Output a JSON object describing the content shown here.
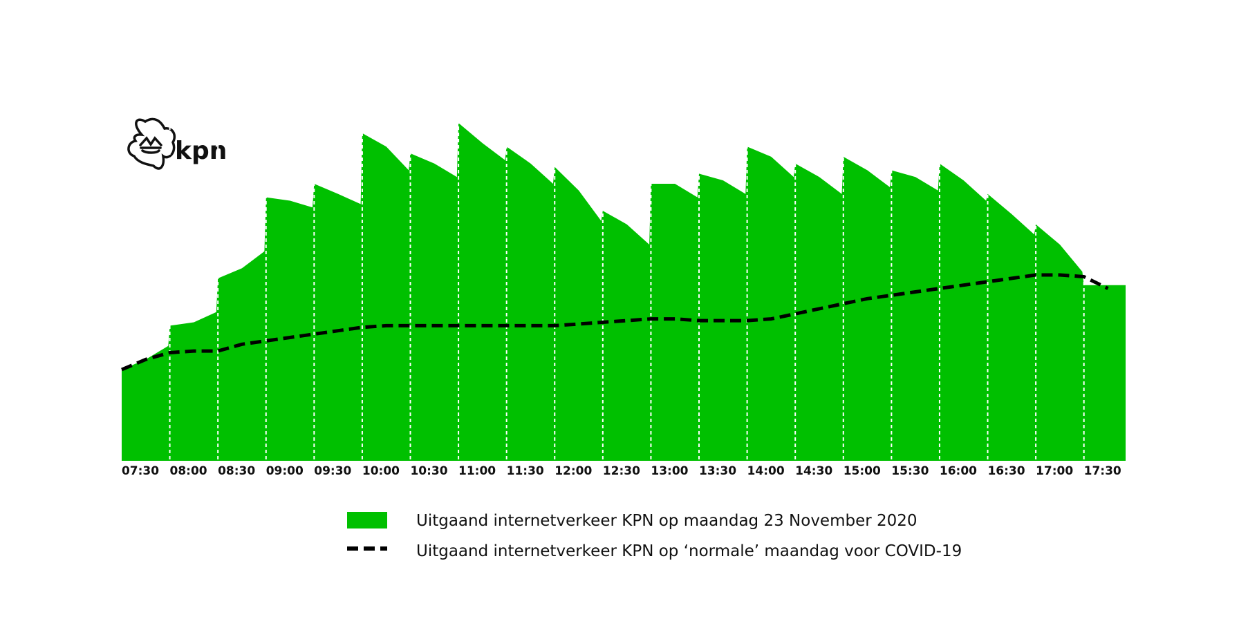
{
  "logo": {
    "text": "kpn",
    "icon": "kpn-crown-logo-icon"
  },
  "colors": {
    "area": "#00c000",
    "line": "#000000",
    "grid": "#ffffff",
    "background": "#ffffff"
  },
  "chart_data": {
    "type": "area",
    "title": "",
    "xlabel": "",
    "ylabel": "",
    "x_ticks": [
      "07:30",
      "08:00",
      "08:30",
      "09:00",
      "09:30",
      "10:00",
      "10:30",
      "11:00",
      "11:30",
      "12:00",
      "12:30",
      "13:00",
      "13:30",
      "14:00",
      "14:30",
      "15:00",
      "15:30",
      "16:00",
      "16:30",
      "17:00",
      "17:30"
    ],
    "y_axis": "hidden",
    "grid": "vertical dashed lines at half-hour intervals",
    "legend_position": "bottom",
    "series": [
      {
        "name": "Uitgaand internetverkeer KPN op maandag 23 November 2020",
        "style": "area",
        "x": [
          "07:30",
          "07:45",
          "07:59",
          "08:00",
          "08:15",
          "08:29",
          "08:30",
          "08:45",
          "08:59",
          "09:00",
          "09:15",
          "09:29",
          "09:30",
          "09:45",
          "09:59",
          "10:00",
          "10:15",
          "10:29",
          "10:30",
          "10:45",
          "10:59",
          "11:00",
          "11:15",
          "11:29",
          "11:30",
          "11:45",
          "11:59",
          "12:00",
          "12:15",
          "12:29",
          "12:30",
          "12:45",
          "12:59",
          "13:00",
          "13:15",
          "13:29",
          "13:30",
          "13:45",
          "13:59",
          "14:00",
          "14:15",
          "14:29",
          "14:30",
          "14:45",
          "14:59",
          "15:00",
          "15:15",
          "15:29",
          "15:30",
          "15:45",
          "15:59",
          "16:00",
          "16:15",
          "16:29",
          "16:30",
          "16:45",
          "16:59",
          "17:00",
          "17:15",
          "17:29",
          "17:30",
          "17:45"
        ],
        "values": [
          27,
          30,
          34,
          40,
          41,
          44,
          54,
          57,
          62,
          78,
          77,
          75,
          82,
          79,
          76,
          97,
          93,
          86,
          91,
          88,
          84,
          100,
          94,
          89,
          93,
          88,
          82,
          87,
          80,
          71,
          74,
          70,
          64,
          82,
          82,
          78,
          85,
          83,
          79,
          93,
          90,
          84,
          88,
          84,
          79,
          90,
          86,
          81,
          86,
          84,
          80,
          88,
          83,
          77,
          79,
          73,
          67,
          70,
          64,
          56,
          52,
          52
        ]
      },
      {
        "name": "Uitgaand internetverkeer KPN op ‘normale’ maandag voor COVID-19",
        "style": "dashed-line",
        "x": [
          "07:30",
          "07:45",
          "08:00",
          "08:15",
          "08:30",
          "08:45",
          "09:00",
          "09:15",
          "09:30",
          "09:45",
          "10:00",
          "10:15",
          "10:30",
          "10:45",
          "11:00",
          "11:15",
          "11:30",
          "11:45",
          "12:00",
          "12:15",
          "12:30",
          "12:45",
          "13:00",
          "13:15",
          "13:30",
          "13:45",
          "14:00",
          "14:15",
          "14:30",
          "14:45",
          "15:00",
          "15:15",
          "15:30",
          "15:45",
          "16:00",
          "16:15",
          "16:30",
          "16:45",
          "17:00",
          "17:15",
          "17:30",
          "17:45"
        ],
        "values": [
          27,
          30,
          32,
          32.5,
          32.5,
          34.5,
          35.5,
          36.5,
          37.5,
          38.5,
          39.5,
          40,
          40,
          40,
          40,
          40,
          40,
          40,
          40,
          40.5,
          41,
          41.5,
          42,
          42,
          41.5,
          41.5,
          41.5,
          42,
          43.5,
          45,
          46.5,
          48,
          49,
          50,
          51,
          52,
          53,
          54,
          55,
          55,
          54.5,
          51
        ]
      }
    ]
  },
  "legend": [
    {
      "label": "Uitgaand internetverkeer KPN op maandag 23 November 2020",
      "swatch": "area"
    },
    {
      "label": "Uitgaand internetverkeer KPN op ‘normale’ maandag voor COVID-19",
      "swatch": "dashed-line"
    }
  ]
}
